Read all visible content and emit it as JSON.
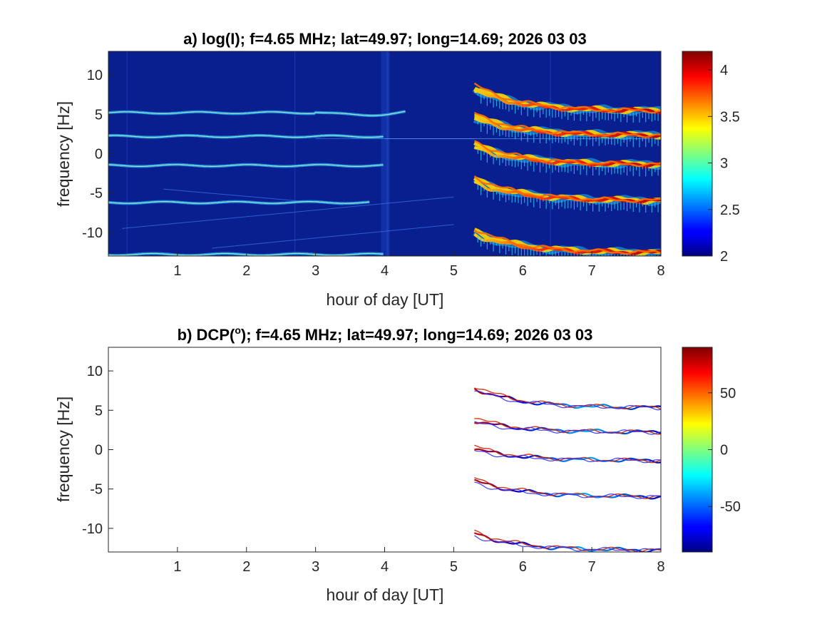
{
  "chart_data": [
    {
      "type": "heatmap",
      "title": "a) log(I); f=4.65 MHz;  lat=49.97; long=14.69; 2026 03 03",
      "xlabel": "hour of day [UT]",
      "ylabel": "frequency [Hz]",
      "xlim": [
        0,
        8
      ],
      "ylim": [
        -13,
        13
      ],
      "xticks": [
        "1",
        "2",
        "3",
        "4",
        "5",
        "6",
        "7",
        "8"
      ],
      "yticks": [
        "10",
        "5",
        "0",
        "-5",
        "-10"
      ],
      "colorbar": {
        "range": [
          2,
          4.2
        ],
        "ticks": [
          "4",
          "3.5",
          "3",
          "2.5",
          "2"
        ],
        "colormap": "jet"
      },
      "background_color": "#0a1f8f",
      "traces_before_5h": [
        {
          "freq": 5.2,
          "hour_start": 0,
          "hour_end": 4.3
        },
        {
          "freq": 2.2,
          "hour_start": 0,
          "hour_end": 4.0
        },
        {
          "freq": -1.5,
          "hour_start": 0,
          "hour_end": 4.0
        },
        {
          "freq": -6.2,
          "hour_start": 0,
          "hour_end": 3.8
        },
        {
          "freq": -12.8,
          "hour_start": 0,
          "hour_end": 4.0
        }
      ],
      "traces_after_5h": [
        {
          "freq_at_5.3h": 8.5,
          "freq_at_8h": 5.4
        },
        {
          "freq_at_5.3h": 4.8,
          "freq_at_8h": 2.3
        },
        {
          "freq_at_5.3h": 1.2,
          "freq_at_8h": -1.4
        },
        {
          "freq_at_5.3h": -3.2,
          "freq_at_8h": -6.0
        },
        {
          "freq_at_5.3h": -9.8,
          "freq_at_8h": -12.6
        }
      ],
      "onset_hour": 5.25
    },
    {
      "type": "heatmap",
      "title_prefix": "b) DCP(",
      "title_sup": "o",
      "title_suffix": "); f=4.65 MHz;  lat=49.97; long=14.69; 2026 03 03",
      "xlabel": "hour of day [UT]",
      "ylabel": "frequency [Hz]",
      "xlim": [
        0,
        8
      ],
      "ylim": [
        -13,
        13
      ],
      "xticks": [
        "1",
        "2",
        "3",
        "4",
        "5",
        "6",
        "7",
        "8"
      ],
      "yticks": [
        "10",
        "5",
        "0",
        "-5",
        "-10"
      ],
      "colorbar": {
        "range": [
          -90,
          90
        ],
        "ticks": [
          "50",
          "0",
          "-50"
        ],
        "colormap": "jet"
      },
      "background_color": "#ffffff",
      "traces_after_5h": [
        {
          "freq_at_5.3h": 8.0,
          "freq_at_8h": 5.3
        },
        {
          "freq_at_5.3h": 3.8,
          "freq_at_8h": 2.2
        },
        {
          "freq_at_5.3h": 0.2,
          "freq_at_8h": -1.4
        },
        {
          "freq_at_5.3h": -3.8,
          "freq_at_8h": -6.0
        },
        {
          "freq_at_5.3h": -10.5,
          "freq_at_8h": -12.8
        }
      ],
      "onset_hour": 5.25
    }
  ]
}
